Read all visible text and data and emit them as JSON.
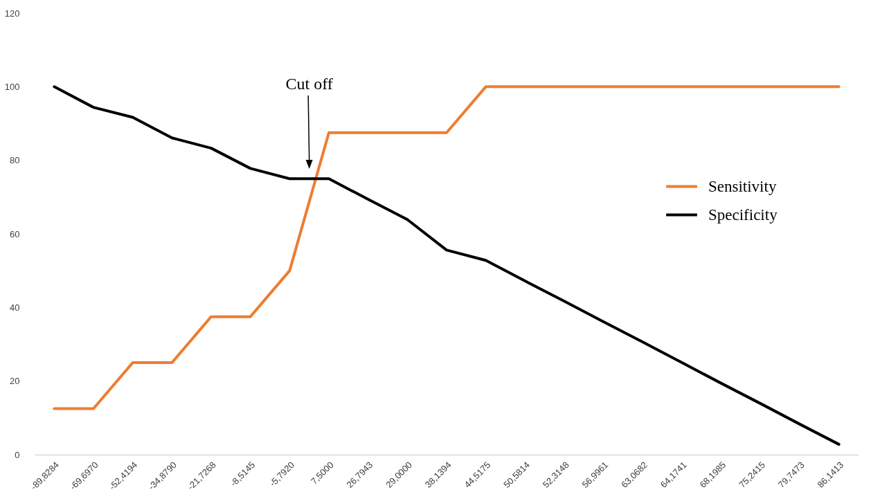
{
  "chart_data": {
    "type": "line",
    "categories": [
      "-89,8284",
      "-69,6970",
      "-52,4194",
      "-34,8790",
      "-21,7268",
      "-8,5145",
      "-5,7920",
      "7,5000",
      "26,7943",
      "29,0000",
      "38,1394",
      "44,5175",
      "50,5814",
      "52,3148",
      "56,9961",
      "63,0682",
      "64,1741",
      "68,1985",
      "75,2415",
      "79,7473",
      "86,1413"
    ],
    "series": [
      {
        "name": "Sensitivity",
        "color": "#ed7d31",
        "values": [
          12.5,
          12.5,
          25,
          25,
          37.5,
          37.5,
          50,
          87.5,
          87.5,
          87.5,
          87.5,
          100,
          100,
          100,
          100,
          100,
          100,
          100,
          100,
          100,
          100
        ]
      },
      {
        "name": "Specificity",
        "color": "#000000",
        "values": [
          100,
          94.4,
          91.7,
          86.1,
          83.3,
          77.8,
          75,
          75,
          69.4,
          63.9,
          55.6,
          52.8,
          47.2,
          41.7,
          36.1,
          30.6,
          25,
          19.4,
          13.9,
          8.3,
          2.8
        ]
      }
    ],
    "ylim": [
      0,
      120
    ],
    "yticks": [
      0,
      20,
      40,
      60,
      80,
      100,
      120
    ],
    "legend": "right",
    "annotations": [
      "Cut off"
    ]
  }
}
